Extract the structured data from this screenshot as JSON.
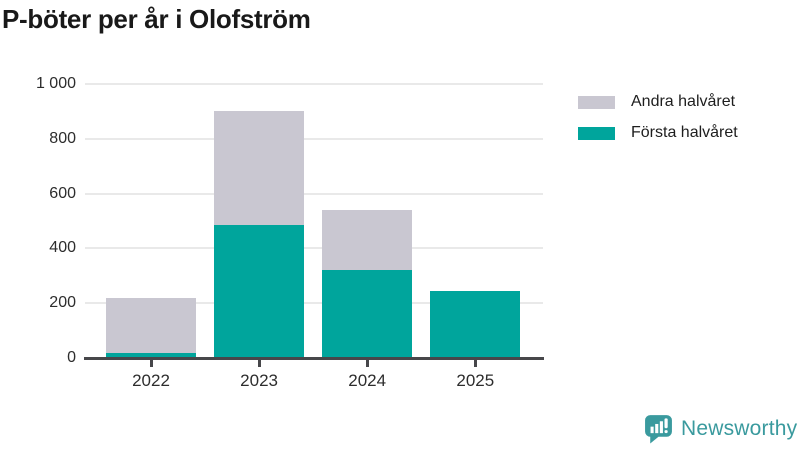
{
  "title": "P-böter per år i Olofström",
  "legend": {
    "items": [
      {
        "label": "Andra halvåret",
        "color": "#c9c7d1"
      },
      {
        "label": "Första halvåret",
        "color": "#00a59c"
      }
    ]
  },
  "footer": {
    "brand": "Newsworthy",
    "brand_color": "#3a9a9e",
    "logo_icon": "bar-chart-speech-bubble-icon"
  },
  "colors": {
    "first_half": "#00a59c",
    "second_half": "#c9c7d1",
    "gridline": "#e9e9e9",
    "axis": "#47474a",
    "text": "#2d2d2d"
  },
  "chart_data": {
    "type": "bar",
    "stacked": true,
    "title": "P-böter per år i Olofström",
    "categories": [
      "2022",
      "2023",
      "2024",
      "2025"
    ],
    "series": [
      {
        "name": "Första halvåret",
        "color": "#00a59c",
        "values": [
          20,
          485,
          320,
          245
        ]
      },
      {
        "name": "Andra halvåret",
        "color": "#c9c7d1",
        "values": [
          200,
          415,
          220,
          0
        ]
      }
    ],
    "totals": [
      220,
      900,
      540,
      245
    ],
    "xlabel": "",
    "ylabel": "",
    "ylim": [
      0,
      1000
    ],
    "yticks": [
      0,
      200,
      400,
      600,
      800,
      1000
    ],
    "ytick_labels": [
      "0",
      "200",
      "400",
      "600",
      "800",
      "1 000"
    ],
    "grid": true,
    "legend_position": "top-right"
  }
}
